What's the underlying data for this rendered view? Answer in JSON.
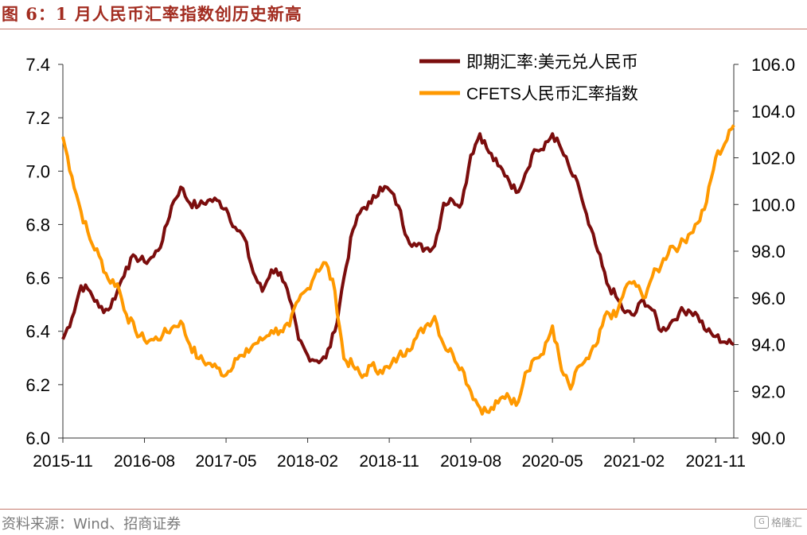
{
  "header": {
    "title": "图 6：1 月人民币汇率指数创历史新高"
  },
  "footer": {
    "source": "资料来源：Wind、招商证券",
    "watermark": "格隆汇",
    "watermark_icon": "glh-logo-icon"
  },
  "colors": {
    "title": "#a22c20",
    "series_usdcny": "#7b0d0d",
    "series_cfets": "#ff9900",
    "rule": "#c57a6e",
    "axis": "#333333"
  },
  "chart_data": {
    "type": "line",
    "title": "",
    "xlabel": "",
    "ylabel_left": "",
    "ylabel_right": "",
    "x_tick_labels": [
      "2015-11",
      "2016-08",
      "2017-05",
      "2018-02",
      "2018-11",
      "2019-08",
      "2020-05",
      "2021-02",
      "2021-11"
    ],
    "x_range": [
      "2015-11",
      "2022-01"
    ],
    "y_left": {
      "range": [
        6.0,
        7.4
      ],
      "ticks": [
        "6.0",
        "6.2",
        "6.4",
        "6.6",
        "6.8",
        "7.0",
        "7.2",
        "7.4"
      ]
    },
    "y_right": {
      "range": [
        90.0,
        106.0
      ],
      "ticks": [
        "90.0",
        "92.0",
        "94.0",
        "96.0",
        "98.0",
        "100.0",
        "102.0",
        "104.0",
        "106.0"
      ]
    },
    "grid": false,
    "legend_position": "top-right",
    "series": [
      {
        "name": "即期汇率:美元兑人民币",
        "axis": "left",
        "x": [
          "2015-11",
          "2015-12",
          "2016-01",
          "2016-02",
          "2016-03",
          "2016-04",
          "2016-05",
          "2016-06",
          "2016-07",
          "2016-08",
          "2016-09",
          "2016-10",
          "2016-11",
          "2016-12",
          "2017-01",
          "2017-02",
          "2017-03",
          "2017-04",
          "2017-05",
          "2017-06",
          "2017-07",
          "2017-08",
          "2017-09",
          "2017-10",
          "2017-11",
          "2017-12",
          "2018-01",
          "2018-02",
          "2018-03",
          "2018-04",
          "2018-05",
          "2018-06",
          "2018-07",
          "2018-08",
          "2018-09",
          "2018-10",
          "2018-11",
          "2018-12",
          "2019-01",
          "2019-02",
          "2019-03",
          "2019-04",
          "2019-05",
          "2019-06",
          "2019-07",
          "2019-08",
          "2019-09",
          "2019-10",
          "2019-11",
          "2019-12",
          "2020-01",
          "2020-02",
          "2020-03",
          "2020-04",
          "2020-05",
          "2020-06",
          "2020-07",
          "2020-08",
          "2020-09",
          "2020-10",
          "2020-11",
          "2020-12",
          "2021-01",
          "2021-02",
          "2021-03",
          "2021-04",
          "2021-05",
          "2021-06",
          "2021-07",
          "2021-08",
          "2021-09",
          "2021-10",
          "2021-11",
          "2021-12",
          "2022-01"
        ],
        "values": [
          6.37,
          6.45,
          6.57,
          6.55,
          6.49,
          6.48,
          6.55,
          6.64,
          6.68,
          6.66,
          6.68,
          6.74,
          6.87,
          6.94,
          6.88,
          6.87,
          6.89,
          6.89,
          6.86,
          6.79,
          6.75,
          6.62,
          6.55,
          6.63,
          6.62,
          6.52,
          6.37,
          6.31,
          6.29,
          6.3,
          6.4,
          6.6,
          6.78,
          6.86,
          6.88,
          6.94,
          6.93,
          6.87,
          6.75,
          6.72,
          6.71,
          6.72,
          6.88,
          6.89,
          6.88,
          7.06,
          7.14,
          7.07,
          7.02,
          6.98,
          6.92,
          6.99,
          7.08,
          7.08,
          7.14,
          7.08,
          7.0,
          6.93,
          6.8,
          6.7,
          6.58,
          6.53,
          6.47,
          6.46,
          6.52,
          6.48,
          6.4,
          6.43,
          6.47,
          6.48,
          6.46,
          6.4,
          6.38,
          6.36,
          6.35
        ]
      },
      {
        "name": "CFETS人民币汇率指数",
        "axis": "right",
        "x": [
          "2015-11",
          "2015-12",
          "2016-01",
          "2016-02",
          "2016-03",
          "2016-04",
          "2016-05",
          "2016-06",
          "2016-07",
          "2016-08",
          "2016-09",
          "2016-10",
          "2016-11",
          "2016-12",
          "2017-01",
          "2017-02",
          "2017-03",
          "2017-04",
          "2017-05",
          "2017-06",
          "2017-07",
          "2017-08",
          "2017-09",
          "2017-10",
          "2017-11",
          "2017-12",
          "2018-01",
          "2018-02",
          "2018-03",
          "2018-04",
          "2018-05",
          "2018-06",
          "2018-07",
          "2018-08",
          "2018-09",
          "2018-10",
          "2018-11",
          "2018-12",
          "2019-01",
          "2019-02",
          "2019-03",
          "2019-04",
          "2019-05",
          "2019-06",
          "2019-07",
          "2019-08",
          "2019-09",
          "2019-10",
          "2019-11",
          "2019-12",
          "2020-01",
          "2020-02",
          "2020-03",
          "2020-04",
          "2020-05",
          "2020-06",
          "2020-07",
          "2020-08",
          "2020-09",
          "2020-10",
          "2020-11",
          "2020-12",
          "2021-01",
          "2021-02",
          "2021-03",
          "2021-04",
          "2021-05",
          "2021-06",
          "2021-07",
          "2021-08",
          "2021-09",
          "2021-10",
          "2021-11",
          "2021-12",
          "2022-01"
        ],
        "values": [
          102.9,
          101.2,
          99.7,
          98.5,
          97.8,
          96.8,
          96.6,
          95.3,
          94.6,
          94.2,
          94.2,
          94.4,
          94.7,
          95.0,
          94.0,
          93.4,
          93.2,
          93.0,
          92.7,
          93.4,
          93.5,
          94.0,
          94.2,
          94.6,
          94.6,
          94.8,
          95.9,
          96.4,
          97.2,
          97.5,
          96.3,
          93.4,
          93.1,
          92.6,
          93.1,
          92.9,
          93.0,
          93.5,
          93.8,
          94.3,
          94.8,
          95.2,
          94.0,
          93.6,
          93.0,
          92.0,
          91.3,
          91.1,
          91.5,
          91.9,
          91.4,
          92.8,
          93.4,
          93.6,
          94.8,
          92.9,
          92.1,
          93.1,
          93.4,
          94.1,
          95.4,
          95.2,
          96.4,
          96.7,
          96.0,
          96.9,
          97.4,
          98.2,
          98.2,
          98.7,
          99.2,
          100.1,
          102.0,
          102.6,
          103.4
        ]
      }
    ]
  }
}
